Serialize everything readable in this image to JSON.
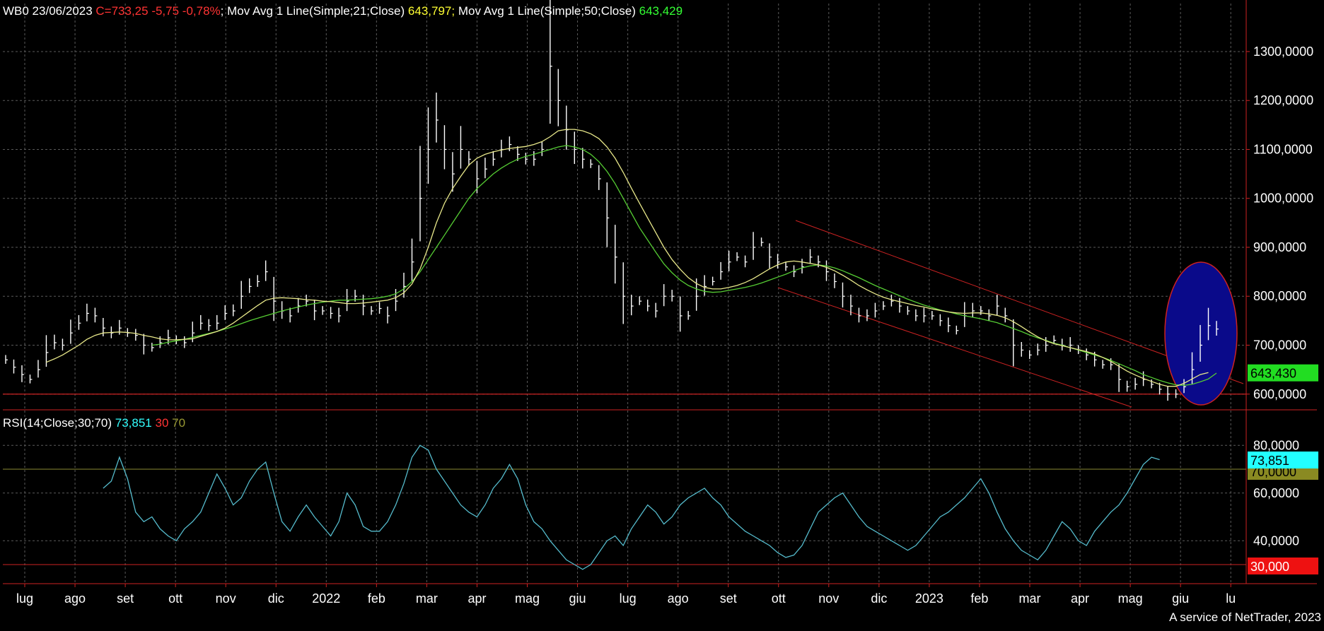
{
  "legend": {
    "symbol_date": "WB0 23/06/2023",
    "price_change": "C=733,25 -5,75 -0,78%",
    "ma21_label": "Mov Avg 1 Line(Simple;21;Close)",
    "ma21_value": "643,797",
    "ma50_label": "Mov Avg 1 Line(Simple;50;Close)",
    "ma50_value": "643,429",
    "sep": ";"
  },
  "rsi_legend": {
    "label": "RSI(14;Close;30;70)",
    "value": "73,851",
    "low": "30",
    "high": "70"
  },
  "credit": "A service of NetTrader, 2023",
  "colors": {
    "background": "#000000",
    "price": "#ffffff",
    "ma21": "#e8e88a",
    "ma50": "#55cc33",
    "rsi": "#55bbcc",
    "channel": "#cc2222",
    "ellipse_fill": "#0a0a8a",
    "ellipse_stroke": "#cc2222",
    "grid": "#5a5a5a",
    "axis": "#cc2222"
  },
  "chart_data": [
    {
      "type": "bar",
      "subtype": "ohlc-price",
      "x_tick_labels": [
        "lug",
        "ago",
        "set",
        "ott",
        "nov",
        "dic",
        "2022",
        "feb",
        "mar",
        "apr",
        "mag",
        "giu",
        "lug",
        "ago",
        "set",
        "ott",
        "nov",
        "dic",
        "2023",
        "feb",
        "mar",
        "apr",
        "mag",
        "giu",
        "lu"
      ],
      "y_tick_labels": [
        "1300,0000",
        "1200,0000",
        "1100,0000",
        "1000,0000",
        "900,0000",
        "800,0000",
        "700,0000",
        "600,0000"
      ],
      "ylim": [
        565,
        1375
      ],
      "series": [
        {
          "name": "WB0",
          "values": [
            670,
            655,
            640,
            630,
            650,
            685,
            705,
            700,
            725,
            745,
            765,
            760,
            735,
            725,
            735,
            725,
            720,
            700,
            695,
            705,
            715,
            710,
            705,
            725,
            745,
            740,
            745,
            765,
            770,
            800,
            820,
            830,
            850,
            790,
            770,
            760,
            780,
            790,
            770,
            770,
            765,
            760,
            790,
            800,
            780,
            770,
            775,
            760,
            790,
            820,
            870,
            1000,
            1100,
            1160,
            1100,
            1050,
            1100,
            1080,
            1040,
            1060,
            1080,
            1100,
            1110,
            1090,
            1080,
            1080,
            1100,
            1270,
            1200,
            1140,
            1100,
            1080,
            1070,
            1040,
            960,
            880,
            800,
            780,
            790,
            780,
            770,
            800,
            800,
            760,
            760,
            800,
            820,
            830,
            850,
            870,
            880,
            870,
            900,
            910,
            880,
            870,
            860,
            850,
            860,
            880,
            870,
            850,
            830,
            800,
            780,
            760,
            760,
            770,
            780,
            790,
            780,
            770,
            760,
            760,
            760,
            750,
            740,
            730,
            760,
            770,
            770,
            760,
            780,
            760,
            700,
            690,
            680,
            690,
            700,
            710,
            700,
            700,
            690,
            680,
            670,
            660,
            660,
            630,
            615,
            620,
            630,
            620,
            610,
            600,
            600,
            615,
            650,
            700,
            740,
            733
          ]
        },
        {
          "name": "Mov Avg 1 Line(Simple;21;Close)",
          "values": [
            null,
            null,
            null,
            null,
            null,
            665,
            672,
            680,
            690,
            700,
            712,
            720,
            725,
            726,
            727,
            726,
            724,
            720,
            717,
            713,
            711,
            711,
            712,
            713,
            718,
            723,
            728,
            735,
            745,
            757,
            769,
            781,
            792,
            796,
            797,
            796,
            795,
            793,
            792,
            790,
            789,
            787,
            785,
            785,
            786,
            788,
            790,
            792,
            797,
            807,
            825,
            856,
            900,
            950,
            990,
            1020,
            1045,
            1068,
            1082,
            1090,
            1095,
            1099,
            1102,
            1104,
            1106,
            1110,
            1116,
            1126,
            1138,
            1141,
            1141,
            1138,
            1132,
            1122,
            1105,
            1082,
            1053,
            1021,
            990,
            960,
            930,
            900,
            875,
            855,
            838,
            826,
            818,
            815,
            815,
            818,
            822,
            828,
            836,
            846,
            856,
            864,
            870,
            872,
            870,
            867,
            864,
            859,
            852,
            843,
            833,
            822,
            813,
            805,
            798,
            793,
            789,
            785,
            781,
            778,
            774,
            771,
            768,
            766,
            765,
            766,
            766,
            764,
            761,
            756,
            748,
            738,
            727,
            717,
            709,
            703,
            699,
            695,
            691,
            687,
            682,
            675,
            667,
            657,
            647,
            639,
            632,
            626,
            620,
            616,
            616,
            622,
            631,
            640,
            644
          ]
        },
        {
          "name": "Mov Avg 1 Line(Simple;50;Close)",
          "values": [
            null,
            null,
            null,
            null,
            null,
            null,
            null,
            null,
            null,
            null,
            null,
            null,
            null,
            null,
            null,
            null,
            null,
            null,
            700,
            702,
            706,
            709,
            712,
            716,
            720,
            724,
            728,
            733,
            738,
            744,
            750,
            755,
            760,
            765,
            770,
            774,
            778,
            782,
            785,
            788,
            790,
            792,
            792,
            793,
            794,
            795,
            797,
            800,
            805,
            815,
            830,
            850,
            875,
            900,
            925,
            950,
            975,
            1000,
            1020,
            1035,
            1050,
            1062,
            1072,
            1080,
            1086,
            1090,
            1095,
            1100,
            1105,
            1108,
            1105,
            1100,
            1090,
            1075,
            1055,
            1030,
            1000,
            970,
            940,
            915,
            890,
            866,
            848,
            833,
            822,
            815,
            810,
            808,
            809,
            812,
            815,
            818,
            822,
            827,
            833,
            839,
            845,
            852,
            858,
            862,
            864,
            862,
            858,
            852,
            845,
            838,
            830,
            822,
            815,
            808,
            801,
            794,
            788,
            782,
            777,
            772,
            768,
            764,
            760,
            757,
            754,
            750,
            746,
            740,
            734,
            728,
            721,
            715,
            710,
            704,
            700,
            695,
            690,
            685,
            680,
            675,
            669,
            662,
            655,
            648,
            640,
            634,
            628,
            623,
            619,
            618,
            620,
            625,
            631,
            643
          ]
        }
      ],
      "trend_channel": {
        "upper_from": [
          "ott",
          "950"
        ],
        "lower_from": [
          "set",
          "810"
        ]
      },
      "highlight": "ellipse around latest bars",
      "last_value_badge": "643,430",
      "horizontal_line": "600,0000"
    },
    {
      "type": "line",
      "subtype": "rsi",
      "y_tick_labels": [
        "80,0000",
        "60,0000",
        "40,0000"
      ],
      "ylim": [
        22,
        86
      ],
      "reference_lines": [
        70,
        30
      ],
      "reference_labels": [
        "70,0000",
        "30,000"
      ],
      "last_value_badge": "73,851",
      "series": [
        {
          "name": "RSI(14;Close;30;70)",
          "values": [
            null,
            null,
            null,
            null,
            null,
            null,
            null,
            null,
            null,
            null,
            null,
            null,
            62,
            65,
            75,
            66,
            52,
            48,
            50,
            45,
            42,
            40,
            45,
            48,
            52,
            60,
            68,
            62,
            55,
            58,
            65,
            70,
            73,
            60,
            48,
            44,
            50,
            55,
            50,
            46,
            42,
            48,
            60,
            55,
            46,
            44,
            44,
            48,
            55,
            64,
            75,
            80,
            78,
            70,
            65,
            60,
            55,
            52,
            50,
            55,
            62,
            66,
            72,
            66,
            55,
            48,
            45,
            40,
            36,
            32,
            30,
            28,
            30,
            35,
            40,
            42,
            38,
            45,
            50,
            55,
            52,
            47,
            50,
            55,
            58,
            60,
            62,
            58,
            55,
            50,
            47,
            44,
            42,
            40,
            38,
            35,
            33,
            34,
            38,
            45,
            52,
            55,
            58,
            60,
            55,
            50,
            46,
            44,
            42,
            40,
            38,
            36,
            38,
            42,
            46,
            50,
            52,
            55,
            58,
            62,
            66,
            60,
            52,
            45,
            40,
            36,
            34,
            32,
            36,
            42,
            48,
            45,
            40,
            38,
            44,
            48,
            52,
            55,
            60,
            66,
            72,
            75,
            74
          ]
        }
      ]
    }
  ]
}
